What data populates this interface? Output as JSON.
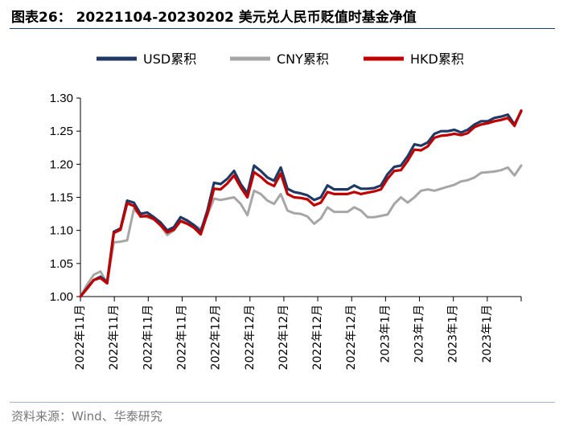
{
  "header": {
    "title": "图表26： 20221104-20230202 美元兑人民币贬值时基金净值"
  },
  "footer": {
    "source": "资料来源：Wind、华泰研究"
  },
  "colors": {
    "usd": "#1f3864",
    "cny": "#a6a6a6",
    "hkd": "#c00000",
    "rule": "#1f3b73"
  },
  "chart_data": {
    "type": "line",
    "title": "",
    "xlabel": "",
    "ylabel": "",
    "ylim": [
      1.0,
      1.3
    ],
    "yticks": [
      "1.00",
      "1.05",
      "1.10",
      "1.15",
      "1.20",
      "1.25",
      "1.30"
    ],
    "xticks": [
      "2022年11月",
      "2022年11月",
      "2022年11月",
      "2022年11月",
      "2022年12月",
      "2022年12月",
      "2022年12月",
      "2022年12月",
      "2022年12月",
      "2023年1月",
      "2023年1月",
      "2023年1月",
      "2023年1月"
    ],
    "grid": false,
    "legend": "top",
    "x": [
      0,
      1,
      2,
      3,
      4,
      5,
      6,
      7,
      8,
      9,
      10,
      11,
      12,
      13,
      14,
      15,
      16,
      17,
      18,
      19,
      20,
      21,
      22,
      23,
      24,
      25,
      26,
      27,
      28,
      29,
      30,
      31,
      32,
      33,
      34,
      35,
      36,
      37,
      38,
      39,
      40,
      41,
      42,
      43,
      44,
      45,
      46,
      47,
      48,
      49,
      50,
      51,
      52,
      53,
      54,
      55,
      56,
      57,
      58,
      59,
      60,
      61,
      62,
      63,
      64,
      65,
      66
    ],
    "series": [
      {
        "name": "USD累积",
        "values": [
          1.0,
          1.013,
          1.025,
          1.03,
          1.022,
          1.098,
          1.103,
          1.145,
          1.142,
          1.125,
          1.127,
          1.12,
          1.112,
          1.1,
          1.105,
          1.12,
          1.115,
          1.108,
          1.098,
          1.13,
          1.172,
          1.17,
          1.178,
          1.19,
          1.17,
          1.156,
          1.198,
          1.19,
          1.18,
          1.175,
          1.195,
          1.163,
          1.158,
          1.156,
          1.153,
          1.146,
          1.15,
          1.168,
          1.162,
          1.162,
          1.162,
          1.168,
          1.163,
          1.163,
          1.164,
          1.168,
          1.185,
          1.196,
          1.198,
          1.212,
          1.23,
          1.228,
          1.233,
          1.246,
          1.25,
          1.25,
          1.252,
          1.248,
          1.252,
          1.26,
          1.265,
          1.265,
          1.27,
          1.272,
          1.275,
          1.26,
          1.28
        ]
      },
      {
        "name": "CNY累积",
        "values": [
          1.0,
          1.018,
          1.033,
          1.038,
          1.02,
          1.082,
          1.083,
          1.085,
          1.132,
          1.122,
          1.12,
          1.117,
          1.107,
          1.093,
          1.1,
          1.115,
          1.113,
          1.108,
          1.102,
          1.123,
          1.148,
          1.146,
          1.148,
          1.15,
          1.14,
          1.123,
          1.16,
          1.155,
          1.145,
          1.14,
          1.155,
          1.13,
          1.126,
          1.125,
          1.121,
          1.11,
          1.118,
          1.135,
          1.128,
          1.128,
          1.128,
          1.135,
          1.13,
          1.12,
          1.12,
          1.122,
          1.124,
          1.14,
          1.15,
          1.142,
          1.15,
          1.16,
          1.162,
          1.16,
          1.163,
          1.166,
          1.169,
          1.174,
          1.176,
          1.18,
          1.187,
          1.188,
          1.189,
          1.191,
          1.195,
          1.183,
          1.198
        ]
      },
      {
        "name": "HKD累积",
        "values": [
          1.0,
          1.012,
          1.025,
          1.028,
          1.02,
          1.096,
          1.101,
          1.141,
          1.137,
          1.121,
          1.122,
          1.117,
          1.108,
          1.097,
          1.101,
          1.114,
          1.11,
          1.104,
          1.094,
          1.125,
          1.163,
          1.162,
          1.171,
          1.183,
          1.165,
          1.15,
          1.188,
          1.181,
          1.172,
          1.167,
          1.186,
          1.155,
          1.15,
          1.149,
          1.147,
          1.138,
          1.142,
          1.158,
          1.155,
          1.155,
          1.155,
          1.158,
          1.155,
          1.157,
          1.159,
          1.162,
          1.178,
          1.19,
          1.191,
          1.205,
          1.222,
          1.221,
          1.227,
          1.24,
          1.243,
          1.244,
          1.246,
          1.244,
          1.247,
          1.256,
          1.26,
          1.262,
          1.265,
          1.267,
          1.27,
          1.258,
          1.281
        ]
      }
    ]
  }
}
